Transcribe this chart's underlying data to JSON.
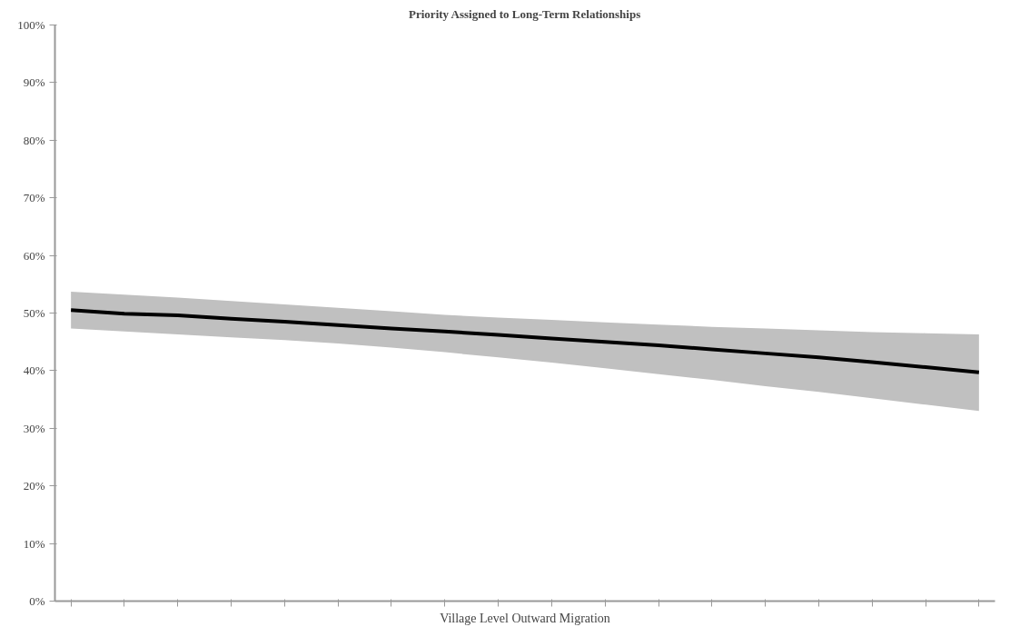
{
  "chart_data": {
    "type": "line",
    "title": "Priority Assigned to Long-Term Relationships",
    "xlabel": "Village Level Outward Migration",
    "categories": [
      null,
      null,
      null,
      null,
      null,
      null,
      null,
      null,
      null,
      null,
      null,
      null,
      null,
      null,
      null,
      null,
      null,
      null
    ],
    "series": [
      {
        "color": "#000000",
        "values": [
          50.5,
          49.9,
          49.6,
          49.0,
          48.5,
          47.9,
          47.3,
          46.8,
          46.2,
          45.6,
          45.0,
          44.4,
          43.7,
          43.0,
          42.3,
          41.5,
          40.6,
          39.7
        ],
        "upper": [
          53.7,
          53.2,
          52.7,
          52.1,
          51.5,
          50.9,
          50.3,
          49.7,
          49.2,
          48.8,
          48.4,
          48.0,
          47.6,
          47.3,
          47.0,
          46.7,
          46.5,
          46.3
        ],
        "lower": [
          47.3,
          46.8,
          46.3,
          45.8,
          45.3,
          44.7,
          44.0,
          43.2,
          42.3,
          41.4,
          40.4,
          39.4,
          38.4,
          37.3,
          36.3,
          35.2,
          34.1,
          33.0
        ]
      }
    ],
    "ylim": [
      0,
      100
    ],
    "yticks": [
      {
        "value": 0,
        "label": "0%"
      },
      {
        "value": 10,
        "label": "10%"
      },
      {
        "value": 20,
        "label": "20%"
      },
      {
        "value": 30,
        "label": "30%"
      },
      {
        "value": 40,
        "label": "40%"
      },
      {
        "value": 50,
        "label": "50%"
      },
      {
        "value": 60,
        "label": "60%"
      },
      {
        "value": 70,
        "label": "70%"
      },
      {
        "value": 80,
        "label": "80%"
      },
      {
        "value": 90,
        "label": "90%"
      },
      {
        "value": 100,
        "label": "100%"
      }
    ],
    "tick_labels": "y",
    "line_style": "solid"
  }
}
